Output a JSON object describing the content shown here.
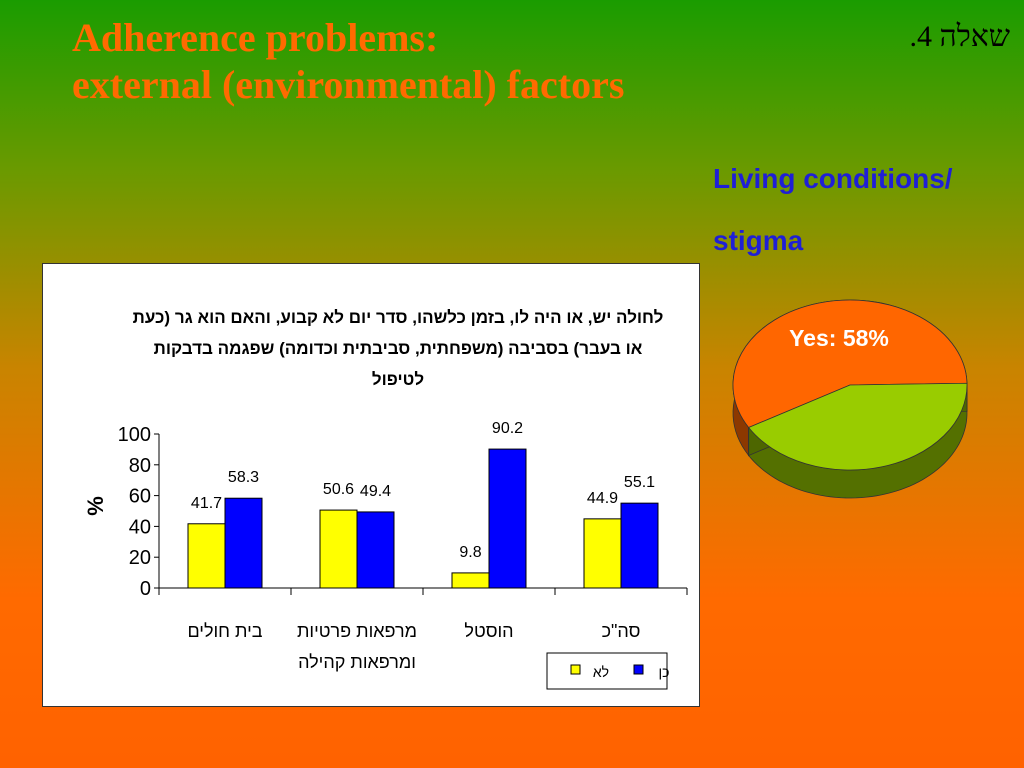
{
  "slide": {
    "title_line1": "Adherence problems:",
    "title_line2": "external (environmental) factors",
    "question_number": "שאלה 4.",
    "subtitle_line1": "Living conditions/",
    "subtitle_line2": "stigma"
  },
  "colors": {
    "title": "#ff6a00",
    "subtitle": "#1f1fd6",
    "no_series": "#ffff00",
    "yes_series": "#0000ff",
    "pie_yes": "#ff6600",
    "pie_no": "#99cc00"
  },
  "chart_data": [
    {
      "type": "bar",
      "title": "לחולה יש, או היה לו, בזמן כלשהו, סדר יום לא קבוע, והאם הוא גר (כעת או בעבר) בסביבה (משפחתית, סביבתית וכדומה) שפגמה בדבקות לטיפול",
      "ylabel": "%",
      "ylim": [
        0,
        100
      ],
      "yticks": [
        "0",
        "20",
        "40",
        "60",
        "80",
        "100"
      ],
      "categories": [
        [
          "בית חולים"
        ],
        [
          "מרפאות פרטיות",
          "ומרפאות קהילה"
        ],
        [
          "הוסטל"
        ],
        [
          "סה\"כ"
        ]
      ],
      "series": [
        {
          "name": "לא",
          "color": "#ffff00",
          "values": [
            41.7,
            50.6,
            9.8,
            44.9
          ],
          "labels": [
            "41.7",
            "50.6",
            "9.8",
            "44.9"
          ]
        },
        {
          "name": "כן",
          "color": "#0000ff",
          "values": [
            58.3,
            49.4,
            90.2,
            55.1
          ],
          "labels": [
            "58.3",
            "49.4",
            "90.2",
            "55.1"
          ]
        }
      ],
      "legend_position": "bottom-right",
      "grid": false
    },
    {
      "type": "pie",
      "slices": [
        {
          "label": "Yes: 58%",
          "value": 58,
          "color": "#ff6600"
        },
        {
          "label": "",
          "value": 42,
          "color": "#99cc00"
        }
      ]
    }
  ]
}
